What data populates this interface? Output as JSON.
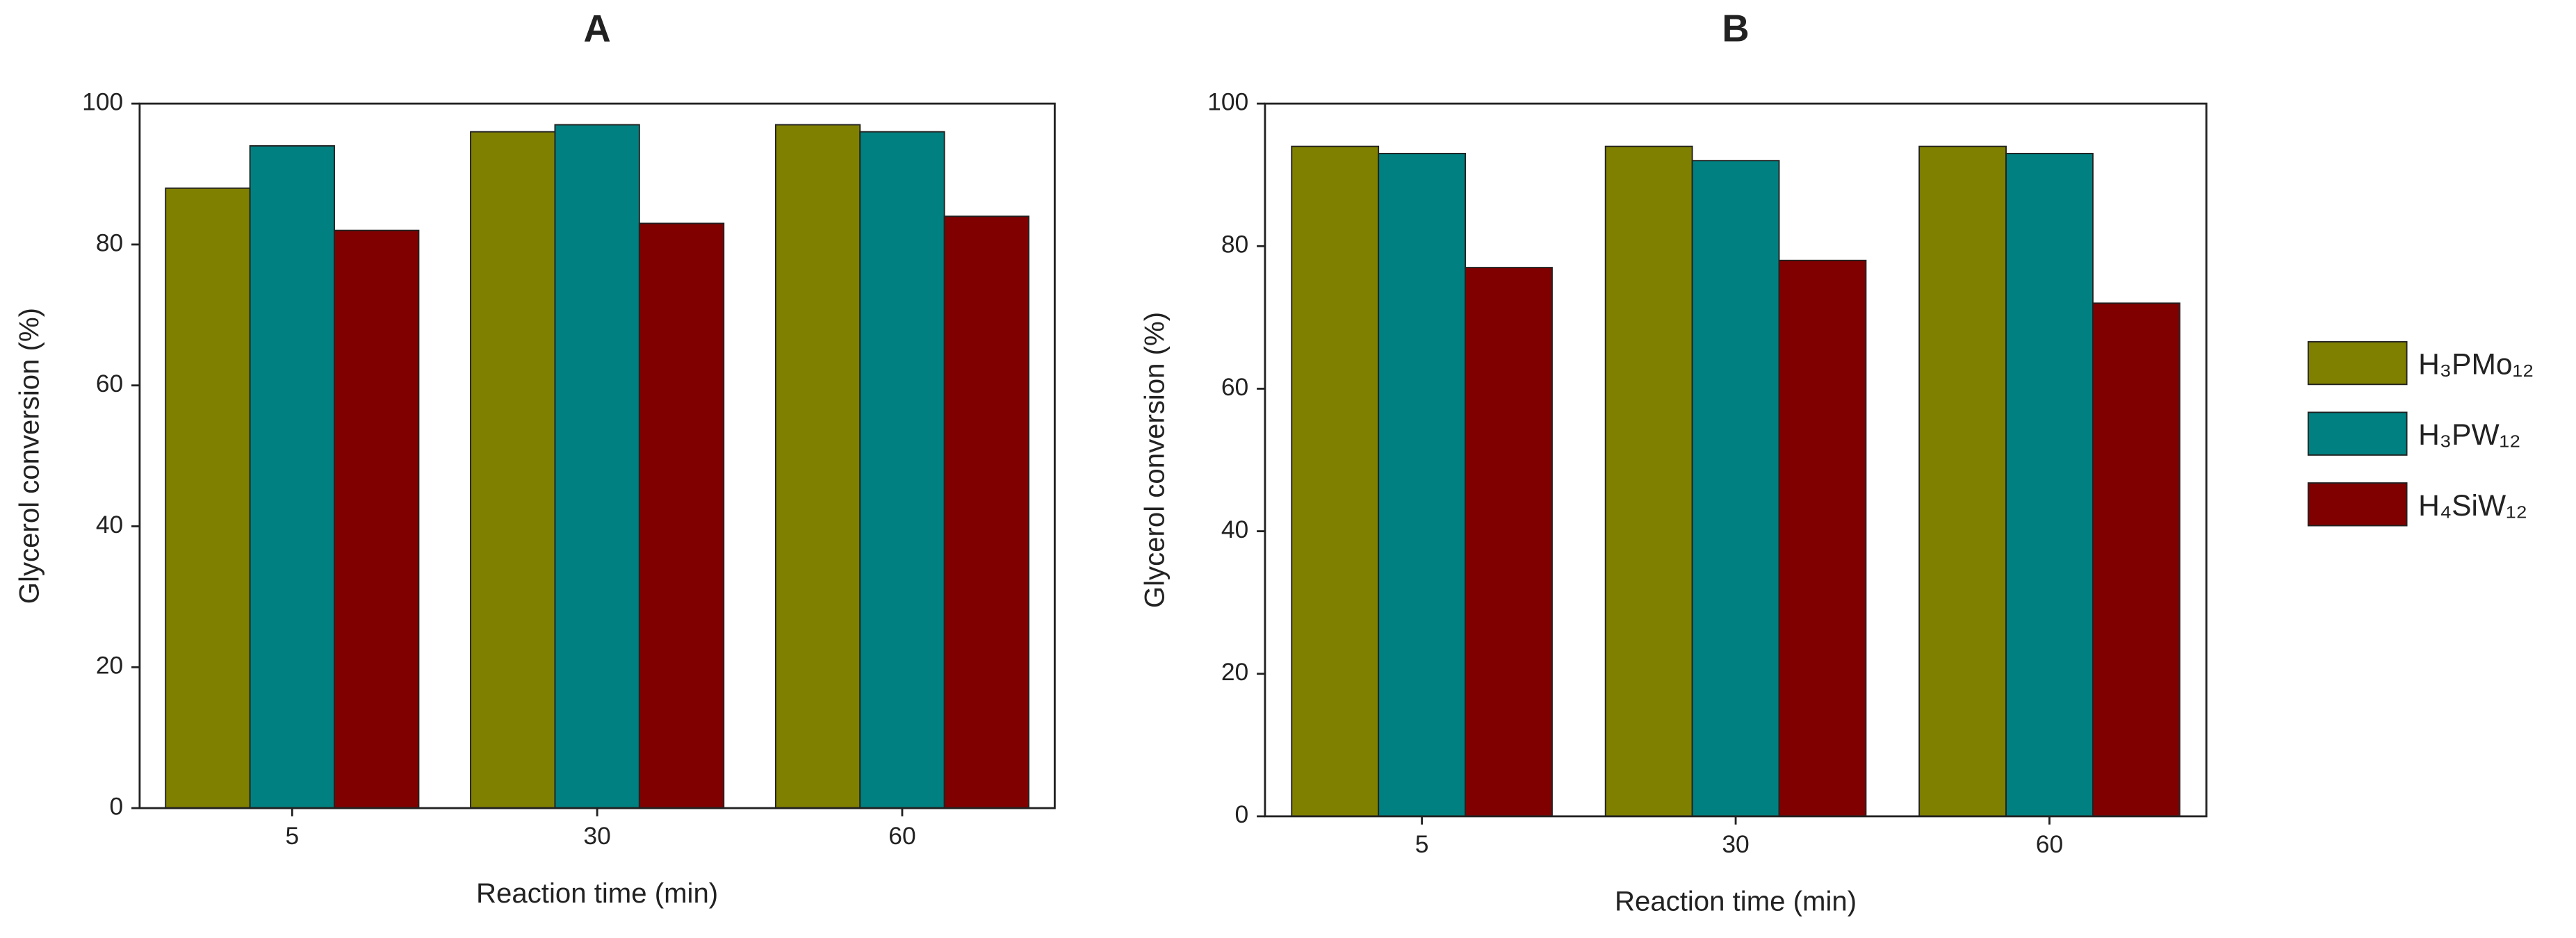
{
  "chart_data": [
    {
      "type": "bar",
      "title": "A",
      "categories": [
        "5",
        "30",
        "60"
      ],
      "series": [
        {
          "color": "#808000",
          "values": [
            88,
            96,
            97
          ]
        },
        {
          "color": "#008080",
          "values": [
            94,
            97,
            96
          ]
        },
        {
          "color": "#800000",
          "values": [
            82,
            83,
            84
          ]
        }
      ],
      "ylim": [
        0,
        100
      ],
      "yticks": [
        0,
        20,
        40,
        60,
        80,
        100
      ],
      "xlabel": "Reaction time (min)",
      "ylabel": "Glycerol conversion (%)"
    },
    {
      "type": "bar",
      "title": "B",
      "categories": [
        "5",
        "30",
        "60"
      ],
      "series": [
        {
          "name": "H₃PMo₁₂",
          "color": "#808000",
          "values": [
            94,
            94,
            94
          ]
        },
        {
          "name": "H₃PW₁₂",
          "color": "#008080",
          "values": [
            93,
            92,
            93
          ]
        },
        {
          "name": "H₄SiW₁₂",
          "color": "#800000",
          "values": [
            77,
            78,
            72
          ]
        }
      ],
      "ylim": [
        0,
        100
      ],
      "yticks": [
        0,
        20,
        40,
        60,
        80,
        100
      ],
      "xlabel": "Reaction time (min)",
      "ylabel": "Glycerol conversion (%)",
      "legend": "right"
    }
  ]
}
